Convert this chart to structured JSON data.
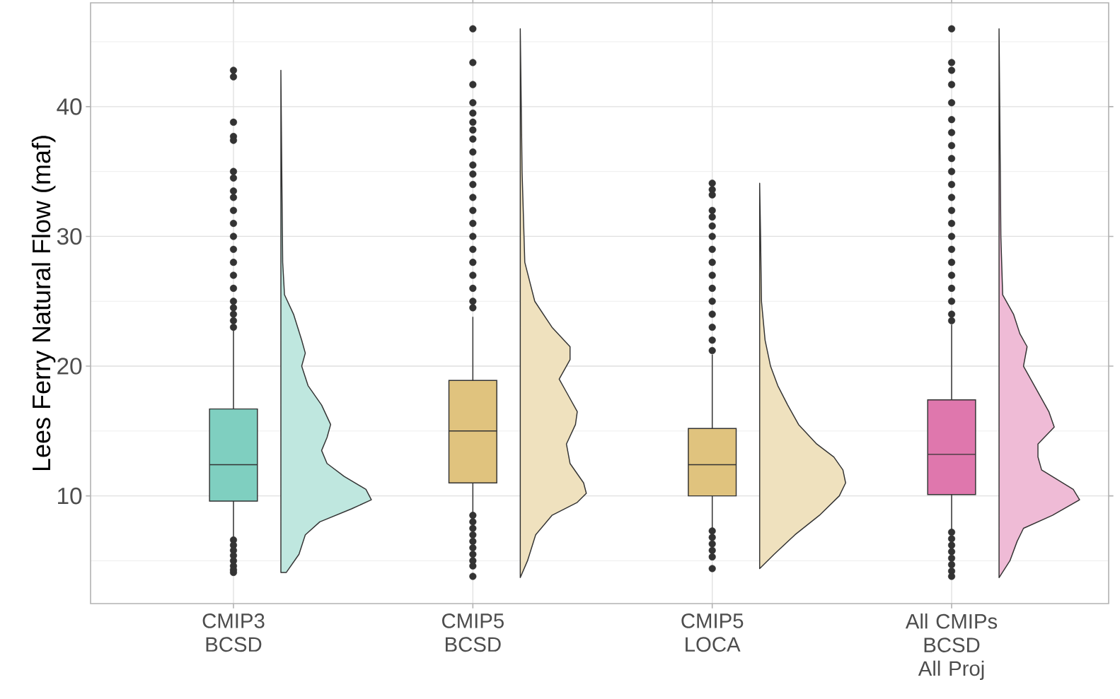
{
  "chart_data": {
    "type": "box",
    "ylabel": "Lees Ferry Natural Flow (maf)",
    "categories": [
      "CMIP3 BCSD",
      "CMIP5 BCSD",
      "CMIP5 LOCA",
      "All CMIPs BCSD All Proj"
    ],
    "colors": [
      "#7fcfc0",
      "#e0c37e",
      "#e0c37e",
      "#df77ad"
    ],
    "boxes": [
      {
        "low": 6.8,
        "q1": 9.6,
        "median": 12.4,
        "q3": 16.7,
        "high": 22.9,
        "outliers": [
          42.8,
          42.3,
          38.8,
          37.7,
          37.4,
          35.0,
          34.5,
          33.5,
          33.0,
          32.0,
          31.0,
          30.0,
          29.0,
          28.0,
          27.0,
          26.0,
          25.0,
          24.5,
          24.0,
          23.5,
          23.0,
          6.6,
          6.2,
          5.8,
          5.4,
          5.0,
          4.6,
          4.3,
          4.1
        ]
      },
      {
        "low": 8.7,
        "q1": 11.0,
        "median": 15.0,
        "q3": 18.9,
        "high": 23.8,
        "outliers": [
          46.0,
          43.4,
          41.7,
          40.3,
          39.5,
          38.8,
          38.2,
          37.5,
          36.5,
          35.5,
          34.8,
          34.0,
          33.0,
          32.0,
          31.0,
          30.0,
          29.0,
          28.0,
          27.0,
          26.0,
          25.0,
          24.5,
          8.5,
          8.0,
          7.5,
          7.0,
          6.5,
          6.0,
          5.5,
          5.0,
          4.6,
          3.8
        ]
      },
      {
        "low": 7.5,
        "q1": 10.0,
        "median": 12.4,
        "q3": 15.2,
        "high": 20.9,
        "outliers": [
          34.1,
          33.6,
          33.2,
          32.0,
          31.5,
          30.8,
          30.0,
          29.0,
          28.0,
          27.0,
          26.0,
          25.0,
          24.0,
          23.0,
          22.0,
          21.2,
          7.3,
          6.8,
          6.3,
          5.8,
          5.3,
          4.4
        ]
      },
      {
        "low": 7.4,
        "q1": 10.1,
        "median": 13.2,
        "q3": 17.4,
        "high": 23.2,
        "outliers": [
          46.0,
          43.4,
          42.8,
          41.7,
          40.3,
          39.0,
          38.0,
          37.0,
          36.0,
          35.0,
          34.0,
          33.0,
          32.0,
          31.0,
          30.0,
          29.0,
          28.0,
          27.0,
          26.0,
          25.0,
          24.0,
          23.5,
          7.2,
          6.7,
          6.2,
          5.7,
          5.2,
          4.7,
          4.2,
          3.8
        ]
      }
    ],
    "ylim": [
      1.7,
      48
    ],
    "yticks": [
      10,
      20,
      30,
      40
    ],
    "grid": true,
    "marker": "circle"
  }
}
